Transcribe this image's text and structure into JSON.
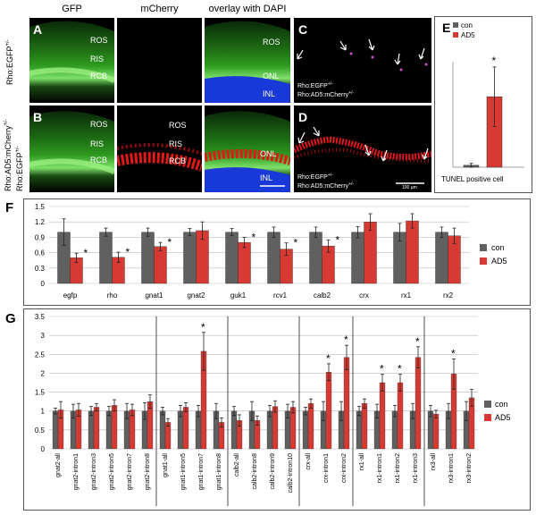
{
  "headers": {
    "gfp": "GFP",
    "mcherry": "mCherry",
    "overlay": "overlay with DAPI"
  },
  "side_labels": {
    "row_a": "Rho:EGFP",
    "row_a_sup": "+/-",
    "row_b_line1": "Rho:AD5:mCherry",
    "row_b_line1_sup": "+/-",
    "row_b_line2": "Rho:EGFP",
    "row_b_line2_sup": "+/-"
  },
  "panel_letters": {
    "a": "A",
    "b": "B",
    "c": "C",
    "d": "D",
    "e": "E",
    "f": "F",
    "g": "G"
  },
  "layer_labels": {
    "ros": "ROS",
    "ris": "RIS",
    "rcb": "RCB",
    "onl": "ONL",
    "inl": "INL"
  },
  "tunel_text": {
    "c_line1": "Rho:EGFP",
    "c_line1_sup": "+/-",
    "c_line2": "Rho:AD5:mCherry",
    "c_line2_sup": "+/-",
    "d_line1": "Rho:EGFP",
    "d_line1_sup": "+/-",
    "d_line2": "Rho:AD5:mCherry",
    "d_line2_sup": "+/-",
    "scale": "100 µm"
  },
  "colors": {
    "con": "#606060",
    "ad5": "#d63a33"
  },
  "chart_data": [
    {
      "id": "E",
      "type": "bar",
      "xlabel": "TUNEL positive cell",
      "categories": [
        "TUNEL positive cell"
      ],
      "series": [
        {
          "name": "con",
          "values": [
            0.4
          ],
          "err": [
            0.4
          ]
        },
        {
          "name": "AD5",
          "values": [
            14.7
          ],
          "err": [
            6.2
          ]
        }
      ],
      "ylim": [
        0,
        22
      ],
      "star": [
        "",
        "*"
      ],
      "legend": "top-right"
    },
    {
      "id": "F",
      "type": "bar",
      "categories": [
        "egfp",
        "rho",
        "gnat1",
        "gnat2",
        "guk1",
        "rcv1",
        "calb2",
        "crx",
        "rx1",
        "rx2"
      ],
      "series": [
        {
          "name": "con",
          "values": [
            1,
            1,
            1,
            1,
            1,
            1,
            1,
            1,
            1,
            1
          ],
          "err": [
            0.26,
            0.08,
            0.08,
            0.07,
            0.07,
            0.1,
            0.1,
            0.11,
            0.17,
            0.1
          ]
        },
        {
          "name": "AD5",
          "values": [
            0.5,
            0.51,
            0.72,
            1.03,
            0.8,
            0.67,
            0.73,
            1.2,
            1.22,
            0.93
          ],
          "err": [
            0.09,
            0.1,
            0.08,
            0.17,
            0.1,
            0.12,
            0.12,
            0.16,
            0.14,
            0.15
          ]
        }
      ],
      "stars": [
        "*",
        "*",
        "*",
        "",
        "*",
        "*",
        "*",
        "",
        "",
        ""
      ],
      "yticks": [
        "0",
        "0.3",
        "0.6",
        "0.9",
        "1.2",
        "1.5"
      ],
      "ylim": [
        0,
        1.5
      ],
      "legend": "right"
    },
    {
      "id": "G",
      "type": "bar",
      "categories": [
        "gnat2-all",
        "gnat2-intron1",
        "gnat2-intron3",
        "gnat2-intron5",
        "gnat2-intron7",
        "gnat2-intron8",
        "gnat1-all",
        "gnat1-intron5",
        "gnat1-intron7",
        "gnat1-intron8",
        "calb2-all",
        "calb2-intron8",
        "calb2-intron9",
        "calb2-intron10",
        "crx-all",
        "crx-intron1",
        "crx-intron2",
        "rx1-all",
        "rx1-intron1",
        "rx1-intron2",
        "rx1-intron3",
        "rx3-all",
        "rx3-intron1",
        "rx3-intron2"
      ],
      "series": [
        {
          "name": "con",
          "values": [
            1,
            1,
            1,
            1,
            1,
            1,
            1,
            1,
            1,
            1,
            1,
            1,
            1,
            1,
            1,
            1,
            1,
            1,
            1,
            1,
            1,
            1,
            1,
            1
          ],
          "err": [
            0.08,
            0.18,
            0.12,
            0.12,
            0.2,
            0.22,
            0.1,
            0.15,
            0.15,
            0.2,
            0.12,
            0.25,
            0.15,
            0.18,
            0.1,
            0.25,
            0.25,
            0.12,
            0.18,
            0.15,
            0.2,
            0.15,
            0.2,
            0.25
          ]
        },
        {
          "name": "AD5",
          "values": [
            1.03,
            1.03,
            1.1,
            1.15,
            1.03,
            1.25,
            0.7,
            1.1,
            2.58,
            0.7,
            0.75,
            0.75,
            1.12,
            1.1,
            1.2,
            2.03,
            2.42,
            1.2,
            1.75,
            1.75,
            2.42,
            0.92,
            1.98,
            1.35
          ]
        },
        {
          "name": "AD5_err",
          "values": [
            0.22,
            0.17,
            0.1,
            0.15,
            0.15,
            0.18,
            0.1,
            0.12,
            0.5,
            0.12,
            0.15,
            0.12,
            0.15,
            0.15,
            0.12,
            0.22,
            0.32,
            0.12,
            0.22,
            0.22,
            0.28,
            0.1,
            0.4,
            0.22
          ]
        }
      ],
      "stars": [
        "",
        "",
        "",
        "",
        "",
        "",
        "",
        "",
        "*",
        "",
        "",
        "",
        "",
        "",
        "",
        "*",
        "*",
        "",
        "*",
        "*",
        "*",
        "",
        "*",
        ""
      ],
      "groups_end": [
        5,
        9,
        13,
        16,
        20
      ],
      "yticks": [
        "0",
        "0.5",
        "1",
        "1.5",
        "2",
        "2.5",
        "3",
        "3.5"
      ],
      "ylim": [
        0,
        3.5
      ],
      "legend": "right"
    }
  ]
}
